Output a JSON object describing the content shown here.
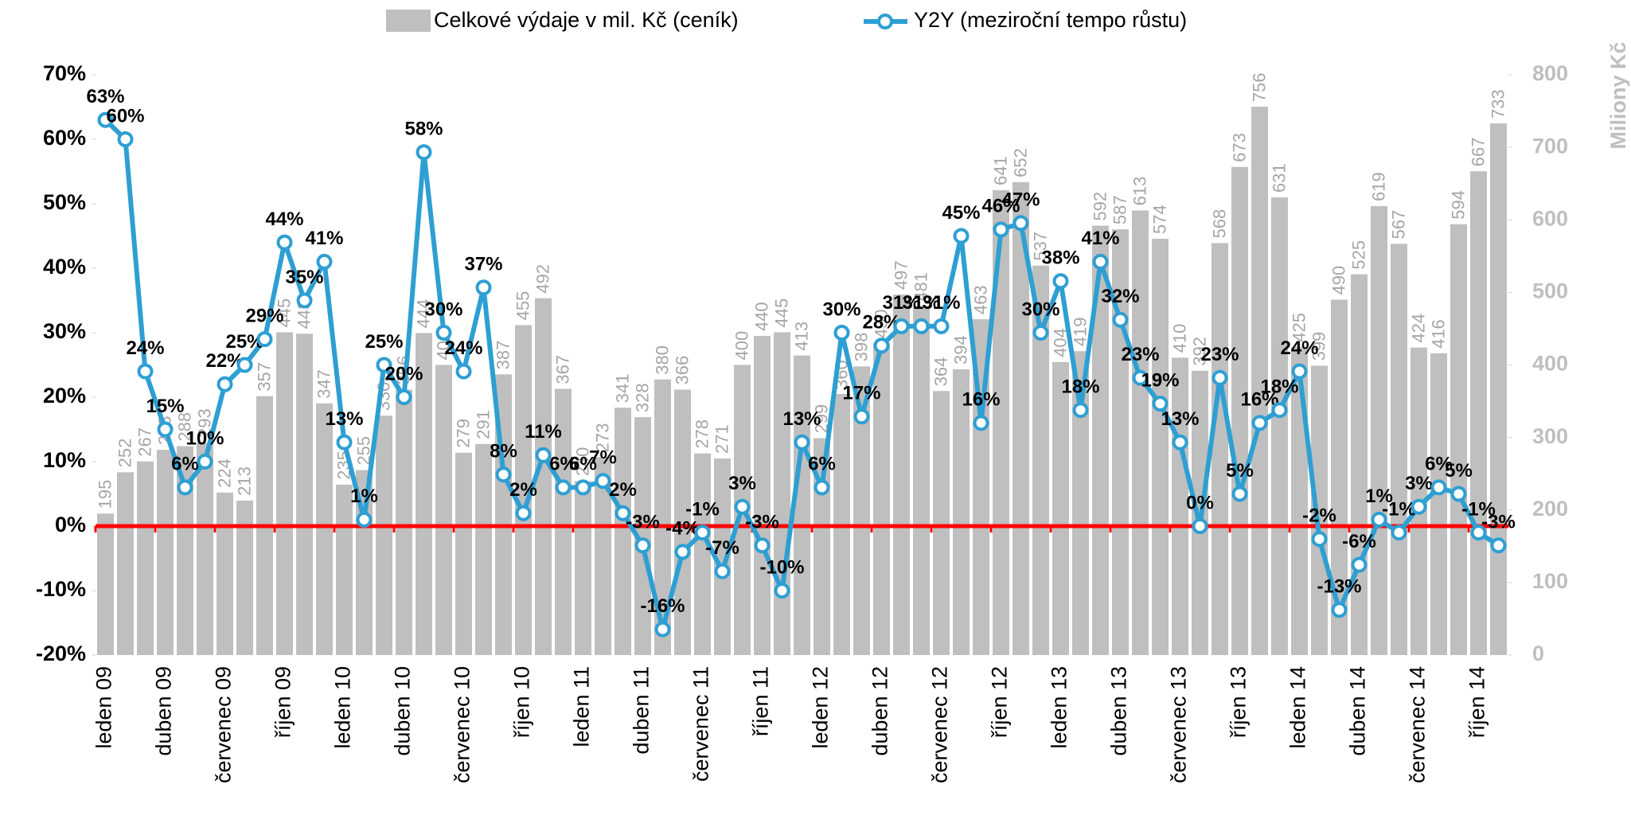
{
  "chart_data": {
    "type": "bar_line",
    "categories": [
      "leden 09",
      null,
      null,
      "duben 09",
      null,
      null,
      "červenec 09",
      null,
      null,
      "říjen 09",
      null,
      null,
      "leden 10",
      null,
      null,
      "duben 10",
      null,
      null,
      "červenec 10",
      null,
      null,
      "říjen 10",
      null,
      null,
      "leden 11",
      null,
      null,
      "duben 11",
      null,
      null,
      "červenec 11",
      null,
      null,
      "říjen 11",
      null,
      null,
      "leden 12",
      null,
      null,
      "duben 12",
      null,
      null,
      "červenec 12",
      null,
      null,
      "říjen 12",
      null,
      null,
      "leden 13",
      null,
      null,
      "duben 13",
      null,
      null,
      "červenec 13",
      null,
      null,
      "říjen 13",
      null,
      null,
      "leden 14",
      null,
      null,
      "duben 14",
      null,
      null,
      "červenec 14",
      null,
      null,
      "říjen 14",
      null
    ],
    "series": [
      {
        "name": "Celkové výdaje v mil. Kč (ceník)",
        "type": "bar",
        "axis": "y2",
        "color": "#bfbfbf",
        "values": [
          195,
          252,
          267,
          283,
          288,
          293,
          224,
          213,
          357,
          445,
          443,
          347,
          235,
          255,
          330,
          366,
          444,
          400,
          279,
          291,
          387,
          455,
          492,
          367,
          240,
          273,
          341,
          328,
          380,
          366,
          278,
          271,
          400,
          440,
          445,
          413,
          299,
          360,
          398,
          430,
          497,
          481,
          364,
          394,
          463,
          641,
          652,
          537,
          404,
          419,
          592,
          587,
          613,
          574,
          410,
          392,
          568,
          673,
          756,
          631,
          425,
          399,
          490,
          525,
          619,
          567,
          424,
          416,
          594,
          667,
          733
        ]
      },
      {
        "name": "Y2Y (meziroční tempo růstu)",
        "type": "line",
        "axis": "y",
        "color": "#2e9fd3",
        "values": [
          63,
          60,
          24,
          15,
          6,
          10,
          22,
          25,
          29,
          44,
          35,
          41,
          13,
          1,
          25,
          20,
          58,
          30,
          24,
          37,
          8,
          2,
          11,
          6,
          6,
          7,
          2,
          -3,
          -16,
          -4,
          -1,
          -7,
          3,
          -3,
          -10,
          13,
          6,
          30,
          17,
          28,
          31,
          31,
          31,
          45,
          16,
          46,
          47,
          30,
          38,
          18,
          41,
          32,
          23,
          19,
          13,
          0,
          23,
          5,
          16,
          18,
          24,
          -2,
          -13,
          -6,
          1,
          -1,
          3,
          6,
          5,
          -1,
          -3
        ],
        "value_labels": [
          "63%",
          "60%",
          "24%",
          "15%",
          "6%",
          "10%",
          "22%",
          "25%",
          "29%",
          "44%",
          "35%",
          "41%",
          "13%",
          "1%",
          "25%",
          "20%",
          "58%",
          "30%",
          "24%",
          "37%",
          "8%",
          "2%",
          "11%",
          "6%",
          "6%",
          "7%",
          "2%",
          "-3%",
          "-16%",
          "-4%",
          "-1%",
          "-7%",
          "3%",
          "-3%",
          "-10%",
          "13%",
          "6%",
          "30%",
          "17%",
          "28%",
          "31%",
          "31%",
          "31%",
          "45%",
          "16%",
          "46%",
          "47%",
          "30%",
          "38%",
          "18%",
          "41%",
          "32%",
          "23%",
          "19%",
          "13%",
          "0%",
          "23%",
          "5%",
          "16%",
          "18%",
          "24%",
          "-2%",
          "-13%",
          "-6%",
          "1%",
          "-1%",
          "3%",
          "6%",
          "5%",
          "-1%",
          "-3%"
        ]
      }
    ],
    "ylim": [
      -20,
      70
    ],
    "yticks": [
      {
        "value": -20,
        "label": "-20%"
      },
      {
        "value": -10,
        "label": "-10%"
      },
      {
        "value": 0,
        "label": "0%"
      },
      {
        "value": 10,
        "label": "10%"
      },
      {
        "value": 20,
        "label": "20%"
      },
      {
        "value": 30,
        "label": "30%"
      },
      {
        "value": 40,
        "label": "40%"
      },
      {
        "value": 50,
        "label": "50%"
      },
      {
        "value": 60,
        "label": "60%"
      },
      {
        "value": 70,
        "label": "70%"
      }
    ],
    "y2lim": [
      0,
      800
    ],
    "y2ticks": [
      0,
      100,
      200,
      300,
      400,
      500,
      600,
      700,
      800
    ],
    "y2label": "Miliony Kč",
    "reference_line": {
      "value": 0,
      "color": "#ff0000"
    },
    "legend": "top"
  }
}
